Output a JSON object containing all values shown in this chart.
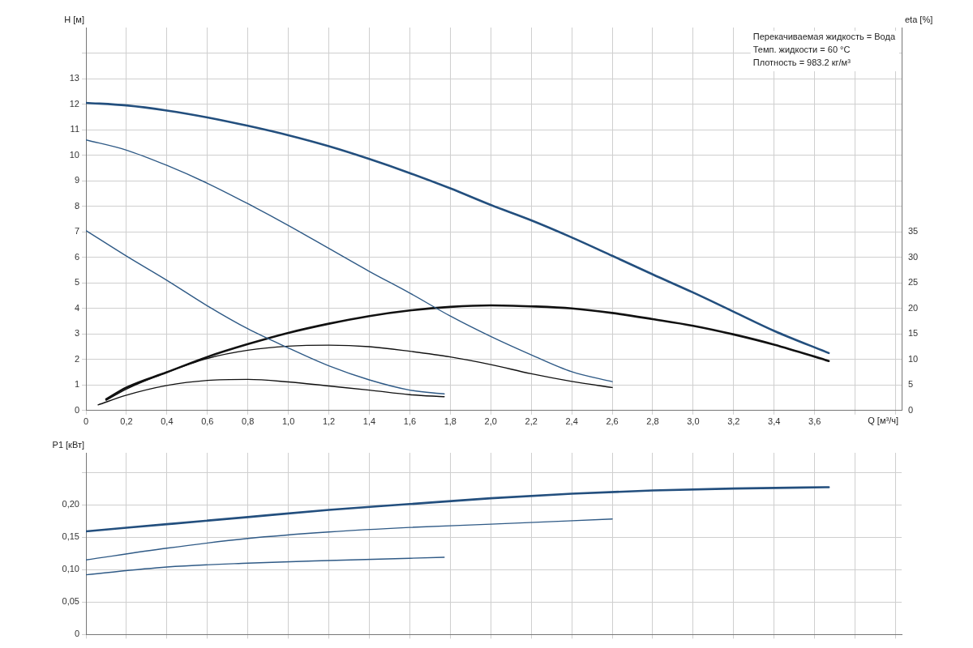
{
  "chart_data": [
    {
      "type": "line",
      "ylabel": "H [м]",
      "y2label": "eta [%]",
      "xlabel": "Q [м³/ч]",
      "grid": true,
      "legend": false,
      "marker": "none",
      "line_style": "solid",
      "annotations": [
        "Перекачиваемая жидкость = Вода",
        "Темп. жидкости = 60 °C",
        "Плотность = 983.2 кг/м³"
      ],
      "xlim": [
        0,
        4.03
      ],
      "xticks": [
        0,
        {
          "value": 0.2,
          "label": "0,2"
        },
        {
          "value": 0.4,
          "label": "0,4"
        },
        {
          "value": 0.6,
          "label": "0,6"
        },
        {
          "value": 0.8,
          "label": "0,8"
        },
        {
          "value": 1,
          "label": "1,0"
        },
        {
          "value": 1.2,
          "label": "1,2"
        },
        {
          "value": 1.4,
          "label": "1,4"
        },
        {
          "value": 1.6,
          "label": "1,6"
        },
        {
          "value": 1.8,
          "label": "1,8"
        },
        {
          "value": 2,
          "label": "2,0"
        },
        {
          "value": 2.2,
          "label": "2,2"
        },
        {
          "value": 2.4,
          "label": "2,4"
        },
        {
          "value": 2.6,
          "label": "2,6"
        },
        {
          "value": 2.8,
          "label": "2,8"
        },
        {
          "value": 3,
          "label": "3,0"
        },
        {
          "value": 3.2,
          "label": "3,2"
        },
        {
          "value": 3.4,
          "label": "3,4"
        },
        {
          "value": 3.6,
          "label": "3,6"
        },
        {
          "value": 3.8,
          "label": null
        },
        {
          "value": 4,
          "label": null
        }
      ],
      "ylim": [
        0,
        15
      ],
      "yticks": [
        0,
        1,
        2,
        3,
        4,
        5,
        6,
        7,
        8,
        9,
        10,
        11,
        12,
        13,
        {
          "value": 14,
          "label": null
        }
      ],
      "y2lim": [
        0,
        75
      ],
      "y2ticks": [
        0,
        5,
        10,
        15,
        20,
        25,
        30,
        35
      ],
      "series": [
        {
          "color": "#234f7e",
          "x": [
            0,
            0.2,
            0.4,
            0.6,
            0.8,
            1,
            1.2,
            1.4,
            1.6,
            1.8,
            2,
            2.2,
            2.4,
            2.6,
            2.8,
            3,
            3.2,
            3.4,
            3.67
          ],
          "values": [
            12.05,
            11.95,
            11.75,
            11.48,
            11.15,
            10.78,
            10.35,
            9.85,
            9.3,
            8.7,
            8.05,
            7.45,
            6.78,
            6.06,
            5.33,
            4.62,
            3.87,
            3.12,
            2.25
          ]
        },
        {
          "color": "#2f5a86",
          "x": [
            0,
            0.2,
            0.4,
            0.6,
            0.8,
            1,
            1.2,
            1.4,
            1.6,
            1.8,
            2,
            2.2,
            2.4,
            2.6
          ],
          "values": [
            10.6,
            10.2,
            9.6,
            8.9,
            8.1,
            7.25,
            6.35,
            5.45,
            4.6,
            3.7,
            2.9,
            2.18,
            1.52,
            1.13
          ]
        },
        {
          "color": "#2f5a86",
          "x": [
            0,
            0.2,
            0.4,
            0.6,
            0.8,
            1,
            1.2,
            1.4,
            1.6,
            1.77
          ],
          "values": [
            7.05,
            6.05,
            5.1,
            4.1,
            3.2,
            2.45,
            1.75,
            1.2,
            0.8,
            0.65
          ]
        },
        {
          "color": "#111111",
          "axis": "y2",
          "x": [
            0.1,
            0.2,
            0.4,
            0.6,
            0.8,
            1,
            1.2,
            1.4,
            1.6,
            1.8,
            2,
            2.2,
            2.4,
            2.6,
            2.8,
            3,
            3.2,
            3.4,
            3.67
          ],
          "values": [
            2.2,
            4.5,
            7.5,
            10.5,
            13,
            15.2,
            17,
            18.5,
            19.6,
            20.3,
            20.6,
            20.4,
            20,
            19.1,
            17.9,
            16.6,
            14.9,
            12.9,
            9.7
          ]
        },
        {
          "color": "#111111",
          "axis": "y2",
          "x": [
            0.1,
            0.2,
            0.4,
            0.6,
            0.8,
            1,
            1.2,
            1.4,
            1.6,
            1.8,
            2,
            2.2,
            2.4,
            2.6
          ],
          "values": [
            2,
            4.2,
            7.5,
            10.2,
            11.8,
            12.6,
            12.8,
            12.5,
            11.6,
            10.5,
            9,
            7.2,
            5.7,
            4.5
          ]
        },
        {
          "color": "#111111",
          "axis": "y2",
          "x": [
            0.06,
            0.2,
            0.4,
            0.6,
            0.8,
            1,
            1.2,
            1.4,
            1.6,
            1.77
          ],
          "values": [
            1.1,
            3,
            4.9,
            5.9,
            6.1,
            5.6,
            4.8,
            4,
            3.1,
            2.7
          ]
        }
      ]
    },
    {
      "type": "line",
      "ylabel": "P1 [кВт]",
      "grid": true,
      "legend": false,
      "marker": "none",
      "line_style": "solid",
      "tick_labels": "y",
      "xlim": [
        0,
        4.03
      ],
      "xticks": [
        0,
        0.2,
        0.4,
        0.6,
        0.8,
        1,
        1.2,
        1.4,
        1.6,
        1.8,
        2,
        2.2,
        2.4,
        2.6,
        2.8,
        3,
        3.2,
        3.4,
        3.6,
        3.8,
        4
      ],
      "ylim": [
        0,
        0.28
      ],
      "yticks": [
        0,
        {
          "value": 0.05,
          "label": "0,05"
        },
        {
          "value": 0.1,
          "label": "0,10"
        },
        {
          "value": 0.15,
          "label": "0,15"
        },
        {
          "value": 0.2,
          "label": "0,20"
        },
        {
          "value": 0.25,
          "label": null
        }
      ],
      "series": [
        {
          "color": "#234f7e",
          "x": [
            0,
            0.4,
            0.8,
            1.2,
            1.6,
            2,
            2.4,
            2.8,
            3.2,
            3.67
          ],
          "values": [
            0.159,
            0.17,
            0.181,
            0.192,
            0.201,
            0.21,
            0.217,
            0.222,
            0.225,
            0.227
          ]
        },
        {
          "color": "#2f5a86",
          "x": [
            0,
            0.4,
            0.8,
            1.2,
            1.6,
            2,
            2.6
          ],
          "values": [
            0.115,
            0.133,
            0.148,
            0.158,
            0.165,
            0.17,
            0.178
          ]
        },
        {
          "color": "#2f5a86",
          "x": [
            0,
            0.4,
            0.8,
            1.2,
            1.77
          ],
          "values": [
            0.092,
            0.104,
            0.11,
            0.114,
            0.119
          ]
        }
      ]
    }
  ]
}
